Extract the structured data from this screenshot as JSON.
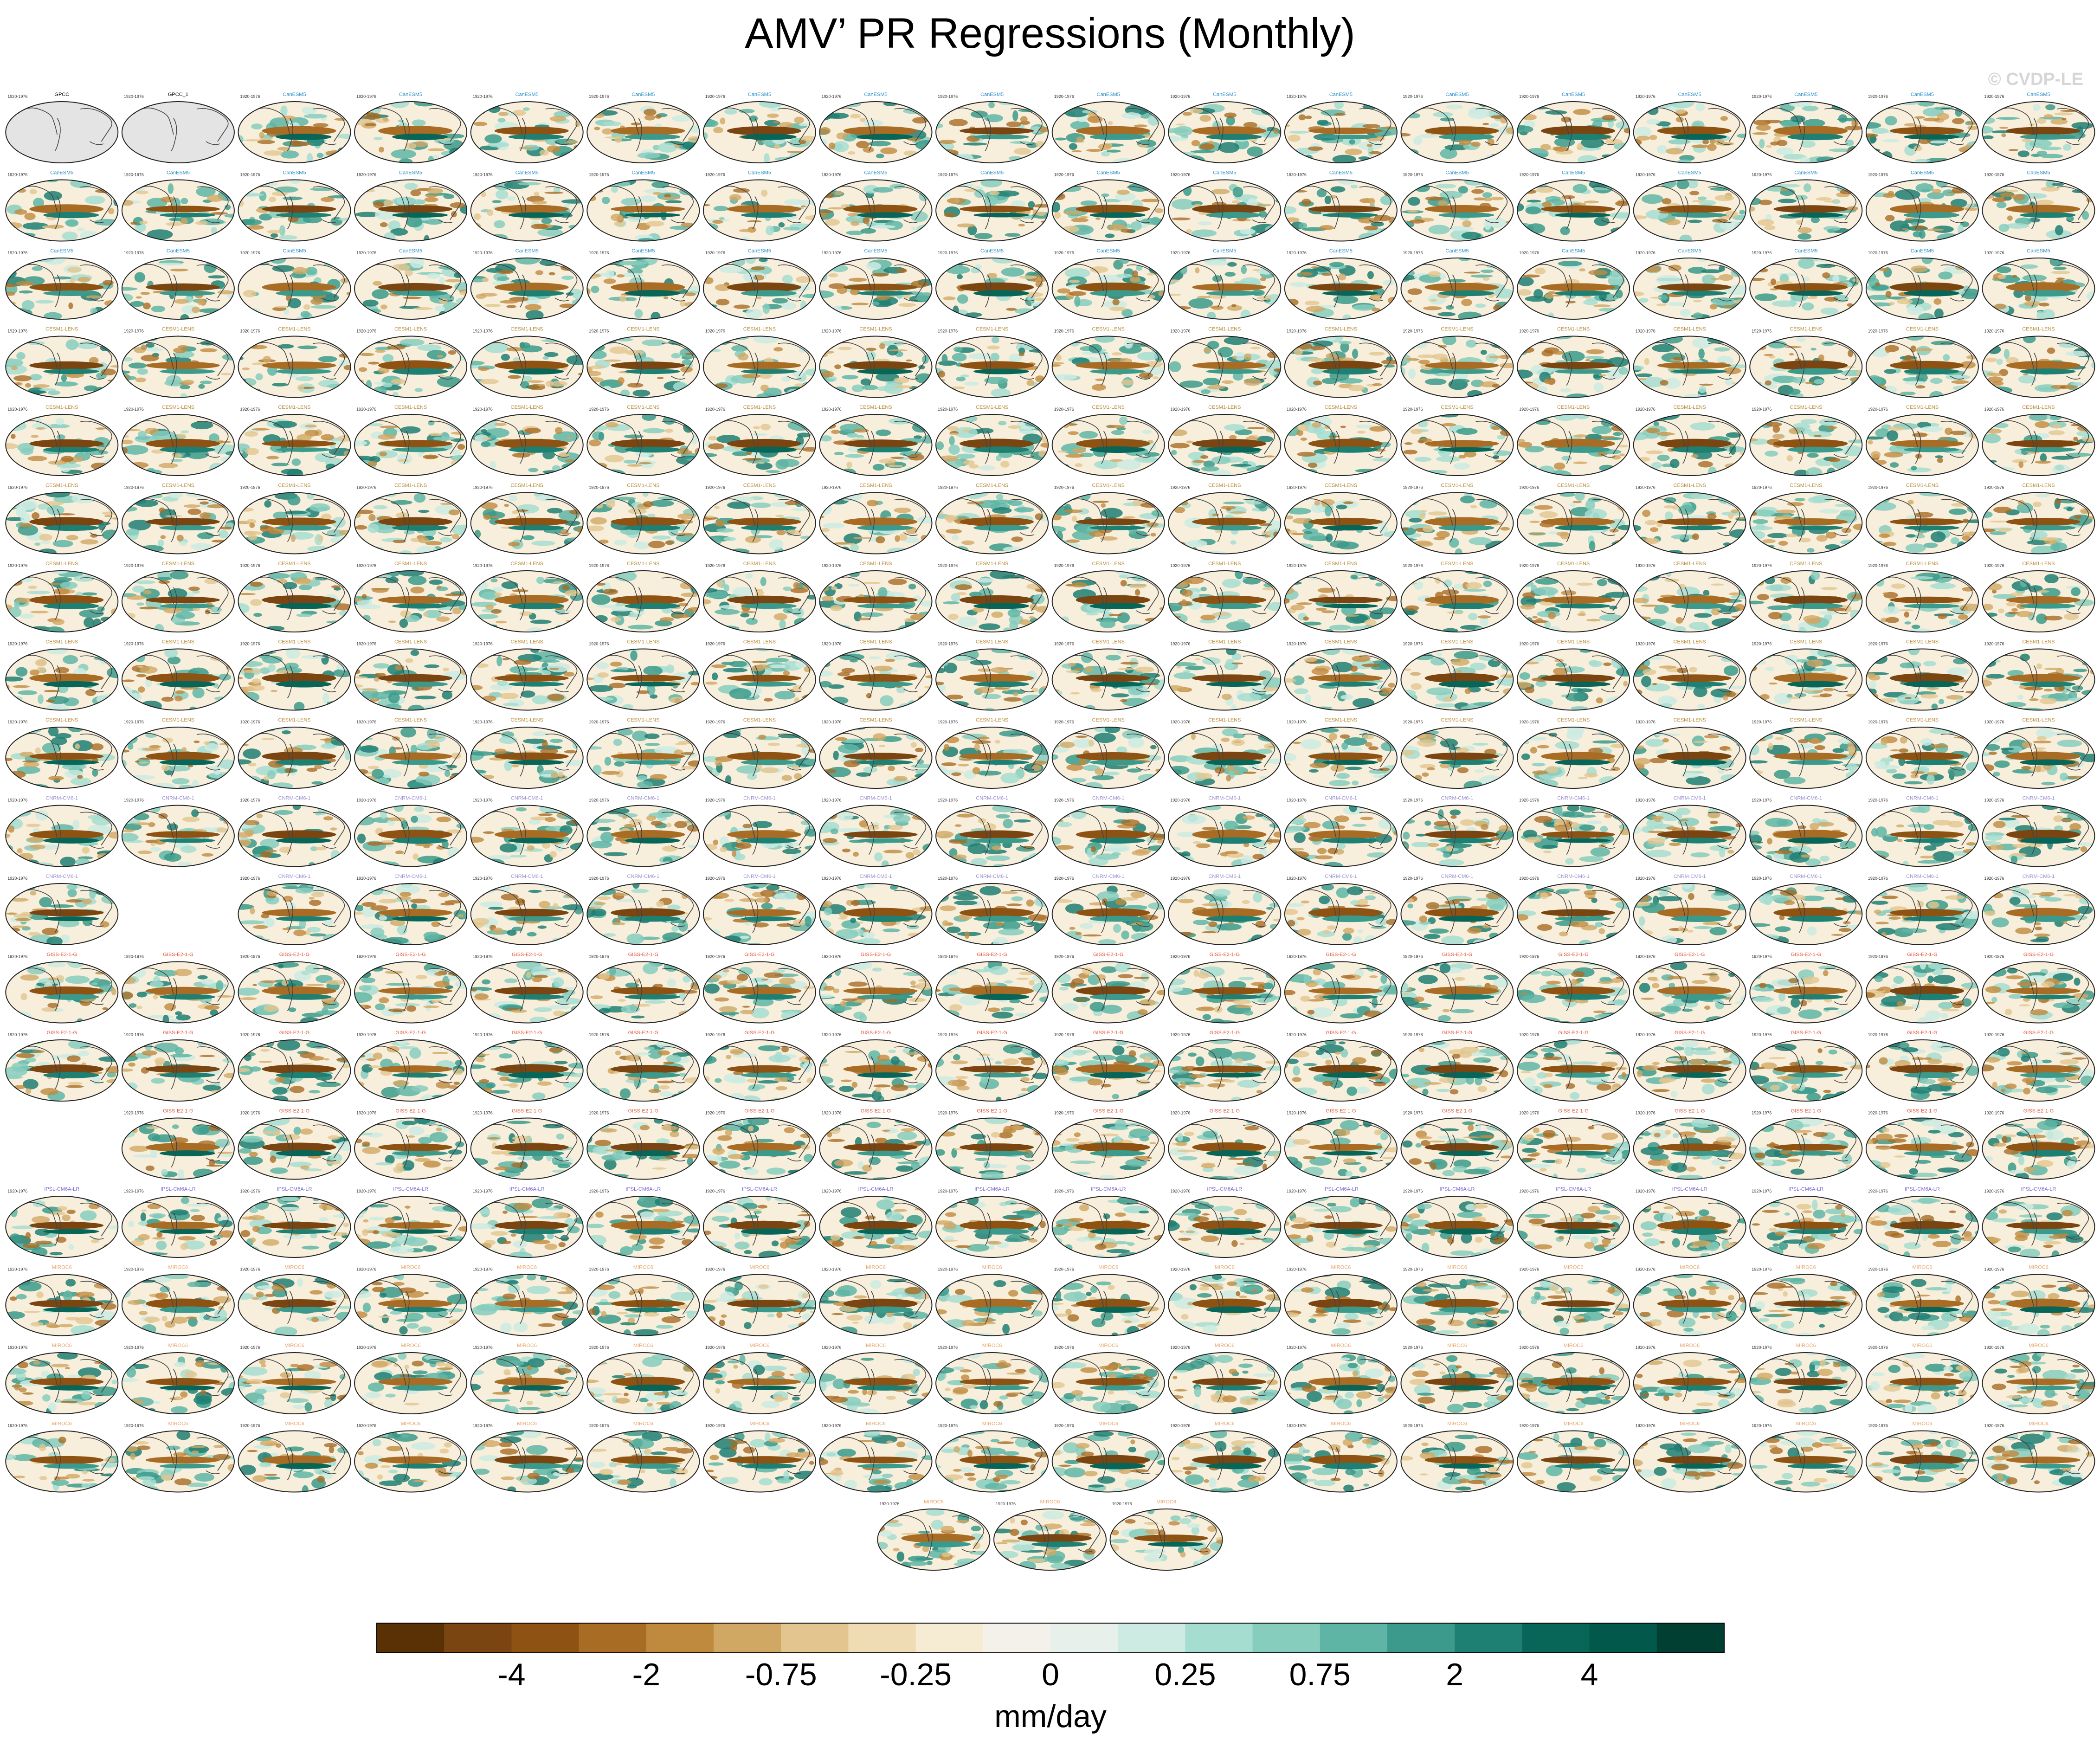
{
  "figure": {
    "title": "AMV’ PR Regressions (Monthly)",
    "credit": "© CVDP-LE"
  },
  "grid": {
    "rows": 18,
    "cols": 18,
    "blank_cells": [
      [
        10,
        1
      ],
      [
        13,
        0
      ]
    ],
    "bottom_row_panels": 3
  },
  "panel_headers": {
    "years": "1920-1976",
    "observations": [
      "GPCC",
      "GPCC_1"
    ],
    "model_groups": [
      {
        "name": "CanESM5",
        "color": "#2b8fc9",
        "row_start": 0,
        "row_end": 3
      },
      {
        "name": "CESM1-LENS",
        "color": "#b98d3a",
        "row_start": 3,
        "row_end": 9
      },
      {
        "name": "CNRM-CM6-1",
        "color": "#9b8fcf",
        "row_start": 9,
        "row_end": 10
      },
      {
        "name": "GISS-E2-1-G",
        "color": "#e2563a",
        "row_start": 11,
        "row_end": 13
      },
      {
        "name": "IPSL-CM6A-LR",
        "color": "#7c63d1",
        "row_start": 14,
        "row_end": 15
      },
      {
        "name": "MIROC6",
        "color": "#e7a46a",
        "row_start": 15,
        "row_end": 17
      }
    ]
  },
  "colorbar": {
    "units": "mm/day",
    "tick_labels": [
      "-4",
      "-2",
      "-0.75",
      "-0.25",
      "0",
      "0.25",
      "0.75",
      "2",
      "4"
    ],
    "colors": [
      "#5a3005",
      "#7a4510",
      "#8e5212",
      "#a86c24",
      "#bf8a3e",
      "#d1a764",
      "#e2c58f",
      "#efdcb4",
      "#f6ecd4",
      "#f3f1ea",
      "#e8f0ec",
      "#cdebe3",
      "#a6ddd1",
      "#86cdbe",
      "#5fb5a5",
      "#3b9a8b",
      "#1e7f73",
      "#086659",
      "#02584a",
      "#003f32"
    ]
  }
}
